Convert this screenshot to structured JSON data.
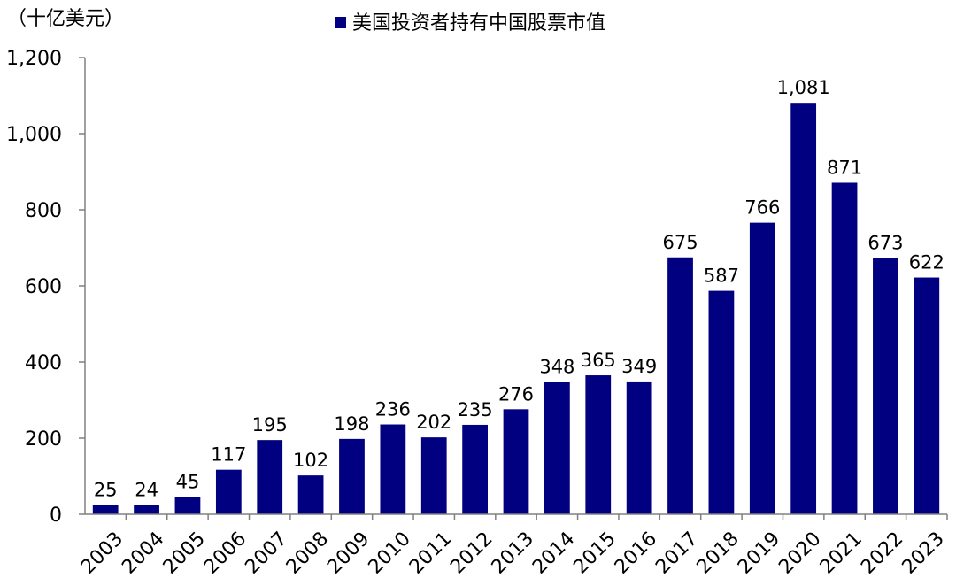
{
  "chart_data": {
    "type": "bar",
    "unit_label": "（十亿美元）",
    "categories": [
      "2003",
      "2004",
      "2005",
      "2006",
      "2007",
      "2008",
      "2009",
      "2010",
      "2011",
      "2012",
      "2013",
      "2014",
      "2015",
      "2016",
      "2017",
      "2018",
      "2019",
      "2020",
      "2021",
      "2022",
      "2023"
    ],
    "series": [
      {
        "name": "美国投资者持有中国股票市值",
        "color": "#000080",
        "values": [
          25,
          24,
          45,
          117,
          195,
          102,
          198,
          236,
          202,
          235,
          276,
          348,
          365,
          349,
          675,
          587,
          766,
          1081,
          871,
          673,
          622
        ],
        "value_labels": [
          "25",
          "24",
          "45",
          "117",
          "195",
          "102",
          "198",
          "236",
          "202",
          "235",
          "276",
          "348",
          "365",
          "349",
          "675",
          "587",
          "766",
          "1,081",
          "871",
          "673",
          "622"
        ]
      }
    ],
    "ylim": [
      0,
      1200
    ],
    "yticks": [
      0,
      200,
      400,
      600,
      800,
      1000,
      1200
    ],
    "ytick_labels": [
      "0",
      "200",
      "400",
      "600",
      "800",
      "1,000",
      "1,200"
    ],
    "legend_position": "top-center",
    "grid": false,
    "xtick_rotation": "diagonal"
  }
}
